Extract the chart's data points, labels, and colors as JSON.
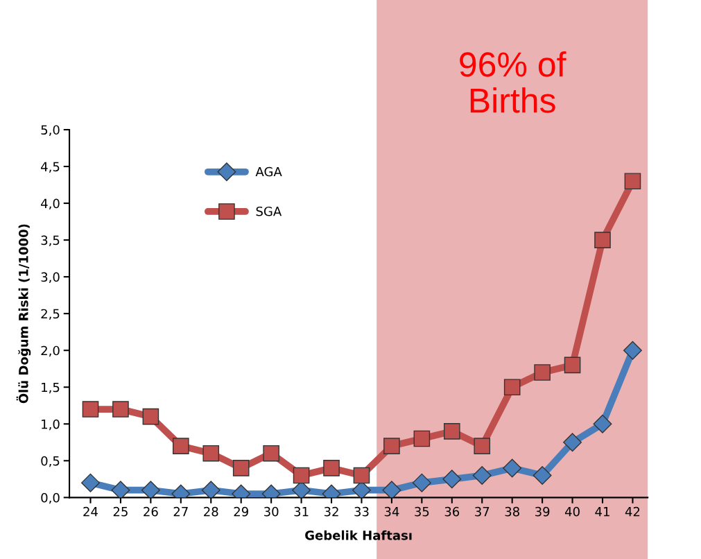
{
  "chart_data": {
    "type": "line",
    "xlabel": "Gebelik Haftası",
    "ylabel": "Ölü Doğum Riski (1/1000)",
    "x": [
      24,
      25,
      26,
      27,
      28,
      29,
      30,
      31,
      32,
      33,
      34,
      35,
      36,
      37,
      38,
      39,
      40,
      41,
      42
    ],
    "series": [
      {
        "name": "AGA",
        "color": "#4a7ebb",
        "marker": "diamond",
        "values": [
          0.2,
          0.1,
          0.1,
          0.05,
          0.1,
          0.05,
          0.05,
          0.1,
          0.05,
          0.1,
          0.1,
          0.2,
          0.25,
          0.3,
          0.4,
          0.3,
          0.75,
          1.0,
          2.0
        ]
      },
      {
        "name": "SGA",
        "color": "#c0504d",
        "marker": "square",
        "values": [
          1.2,
          1.2,
          1.1,
          0.7,
          0.6,
          0.4,
          0.6,
          0.3,
          0.4,
          0.3,
          0.7,
          0.8,
          0.9,
          0.7,
          1.5,
          1.7,
          1.8,
          3.5,
          4.3
        ]
      }
    ],
    "xlim": [
      23.3,
      42.5
    ],
    "xticks": [
      24,
      25,
      26,
      27,
      28,
      29,
      30,
      31,
      32,
      33,
      34,
      35,
      36,
      37,
      38,
      39,
      40,
      41,
      42
    ],
    "ylim": [
      0,
      5
    ],
    "yticks": [
      {
        "value": 0,
        "label": "0,0"
      },
      {
        "value": 0.5,
        "label": "0,5"
      },
      {
        "value": 1,
        "label": "1,0"
      },
      {
        "value": 1.5,
        "label": "1,5"
      },
      {
        "value": 2,
        "label": "2,0"
      },
      {
        "value": 2.5,
        "label": "2,5"
      },
      {
        "value": 3,
        "label": "3,0"
      },
      {
        "value": 3.5,
        "label": "3,5"
      },
      {
        "value": 4,
        "label": "4,0"
      },
      {
        "value": 4.5,
        "label": "4,5"
      },
      {
        "value": 5,
        "label": "5,0"
      }
    ],
    "bands": [
      {
        "axis": "x",
        "from": 33.5,
        "to": 42.5,
        "label": "96% of\nBirths",
        "color": "#e8a4a6"
      }
    ],
    "grid": false,
    "legend": "top left",
    "line_style": "solid"
  }
}
